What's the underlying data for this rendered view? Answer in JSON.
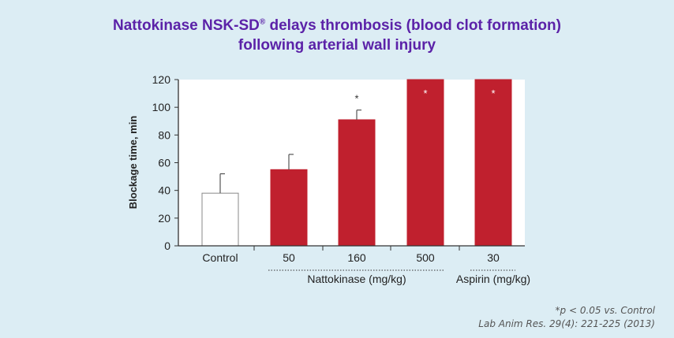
{
  "title": {
    "line1_main": "Nattokinase NSK-SD",
    "line1_sup": "®",
    "line1_rest": " delays thrombosis (blood clot formation)",
    "line2": "following arterial wall injury"
  },
  "footnote": {
    "line1": "*p < 0.05 vs. Control",
    "line2": "Lab Anim Res. 29(4): 221-225 (2013)"
  },
  "colors": {
    "title": "#5b22a8",
    "bar": "#c0202e",
    "control_bar": "#ffffff",
    "axis": "#333333",
    "background": "#dcedf4",
    "plot_background": "#ffffff"
  },
  "chart_data": {
    "type": "bar",
    "categories": [
      "Control",
      "50",
      "160",
      "500",
      "30"
    ],
    "values": [
      38,
      55,
      91,
      120,
      120
    ],
    "error": [
      14,
      11,
      7,
      null,
      null
    ],
    "significance": [
      "",
      "",
      "*",
      "*",
      "*"
    ],
    "ylabel": "Blockage time, min",
    "ylim": [
      0,
      120
    ],
    "yticks": [
      0,
      20,
      40,
      60,
      80,
      100,
      120
    ],
    "group_labels": [
      "Nattokinase (mg/kg)",
      "Aspirin (mg/kg)"
    ],
    "grid": false
  }
}
